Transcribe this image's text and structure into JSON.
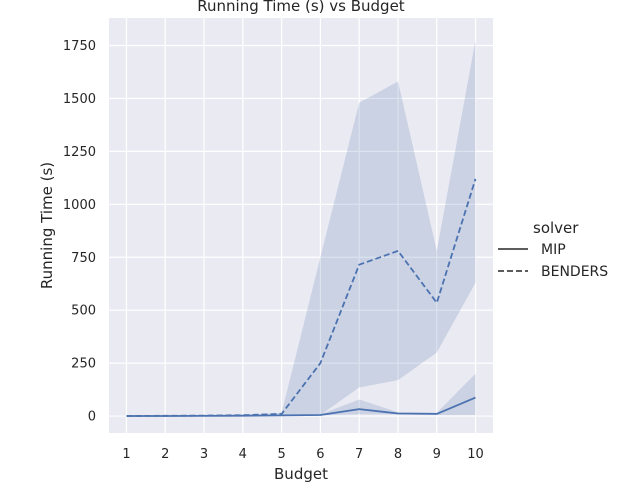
{
  "chart_data": {
    "type": "line",
    "title": "Running Time (s) vs Budget",
    "xlabel": "Budget",
    "ylabel": "Running Time (s)",
    "x": [
      1,
      2,
      3,
      4,
      5,
      6,
      7,
      8,
      9,
      10
    ],
    "xticks": [
      "1",
      "2",
      "3",
      "4",
      "5",
      "6",
      "7",
      "8",
      "9",
      "10"
    ],
    "yticks": [
      0,
      250,
      500,
      750,
      1000,
      1250,
      1500,
      1750
    ],
    "ylim": [
      -80,
      1880
    ],
    "grid": true,
    "legend": {
      "title": "solver",
      "placement": "right"
    },
    "color": "#4c72b0",
    "series": [
      {
        "name": "MIP",
        "style": "solid",
        "values": [
          0.3,
          0.5,
          0.8,
          1.5,
          3,
          5,
          33,
          12,
          10,
          87
        ],
        "ci_lower": [
          0.2,
          0.3,
          0.5,
          1,
          2,
          3,
          8,
          8,
          5,
          5
        ],
        "ci_upper": [
          0.5,
          0.8,
          1.2,
          2.5,
          5,
          8,
          78,
          18,
          16,
          200
        ]
      },
      {
        "name": "BENDERS",
        "style": "dashed",
        "values": [
          0.5,
          1,
          2,
          4,
          10,
          250,
          715,
          780,
          535,
          1120
        ],
        "ci_lower": [
          0.3,
          0.5,
          1,
          2,
          5,
          5,
          135,
          170,
          300,
          630
        ],
        "ci_upper": [
          1,
          2,
          3,
          6,
          15,
          750,
          1480,
          1580,
          780,
          1775
        ]
      }
    ]
  }
}
